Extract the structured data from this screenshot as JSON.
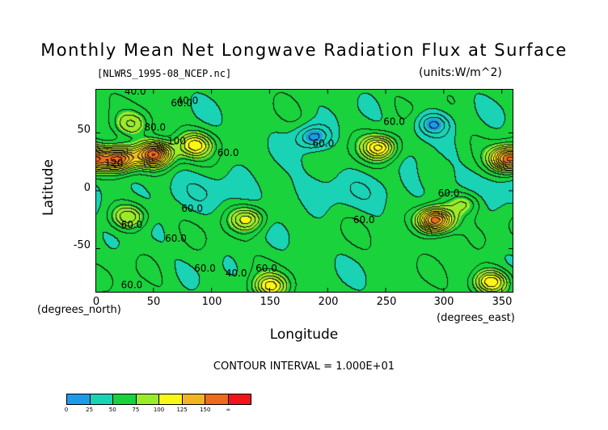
{
  "chart_data": {
    "type": "heatmap",
    "title": "Monthly Mean Net Longwave Radiation Flux at Surface",
    "subtitle_left": "[NLWRS_1995-08_NCEP.nc]",
    "subtitle_right": "(units:W/m^2)",
    "xlabel": "Longitude",
    "ylabel": "Latitude",
    "x_unit": "(degrees_east)",
    "y_unit": "(degrees_north)",
    "xlim": [
      0,
      360
    ],
    "ylim": [
      -88,
      88
    ],
    "x_ticks": [
      "0",
      "50",
      "100",
      "150",
      "200",
      "250",
      "300",
      "350"
    ],
    "y_ticks": [
      "50",
      "0",
      "-50"
    ],
    "contour_interval": "CONTOUR INTERVAL = 1.000E+01",
    "colorbar": {
      "levels": [
        "0",
        "25",
        "50",
        "75",
        "100",
        "125",
        "150",
        "∞"
      ],
      "colors": [
        "#1e9be8",
        "#19d3b4",
        "#19d23c",
        "#9aeb2a",
        "#fbf714",
        "#f3b423",
        "#ee6a1d",
        "#f0151a"
      ]
    },
    "contour_labels": [
      "40.0",
      "60.0",
      "40.0",
      "80.0",
      "100",
      "120",
      "60.0",
      "60.0",
      "60.0",
      "60.0",
      "60.0",
      "60.0",
      "40.0",
      "60.0",
      "60.0",
      "60.0",
      "60.0",
      "60.0"
    ],
    "features": [
      {
        "lon": 20,
        "lat": 28,
        "value": 165
      },
      {
        "lon": 50,
        "lat": 32,
        "value": 170
      },
      {
        "lon": 85,
        "lat": 40,
        "value": 110
      },
      {
        "lon": 30,
        "lat": 58,
        "value": 85
      },
      {
        "lon": 355,
        "lat": 28,
        "value": 155
      },
      {
        "lon": 244,
        "lat": 38,
        "value": 120
      },
      {
        "lon": 28,
        "lat": -22,
        "value": 100
      },
      {
        "lon": 130,
        "lat": -24,
        "value": 105
      },
      {
        "lon": 292,
        "lat": -25,
        "value": 165
      },
      {
        "lon": 318,
        "lat": -10,
        "value": 85
      },
      {
        "lon": 187,
        "lat": 47,
        "value": 15
      },
      {
        "lon": 290,
        "lat": 58,
        "value": 18
      },
      {
        "lon": 150,
        "lat": -82,
        "value": 110
      },
      {
        "lon": 340,
        "lat": -78,
        "value": 120
      }
    ]
  }
}
